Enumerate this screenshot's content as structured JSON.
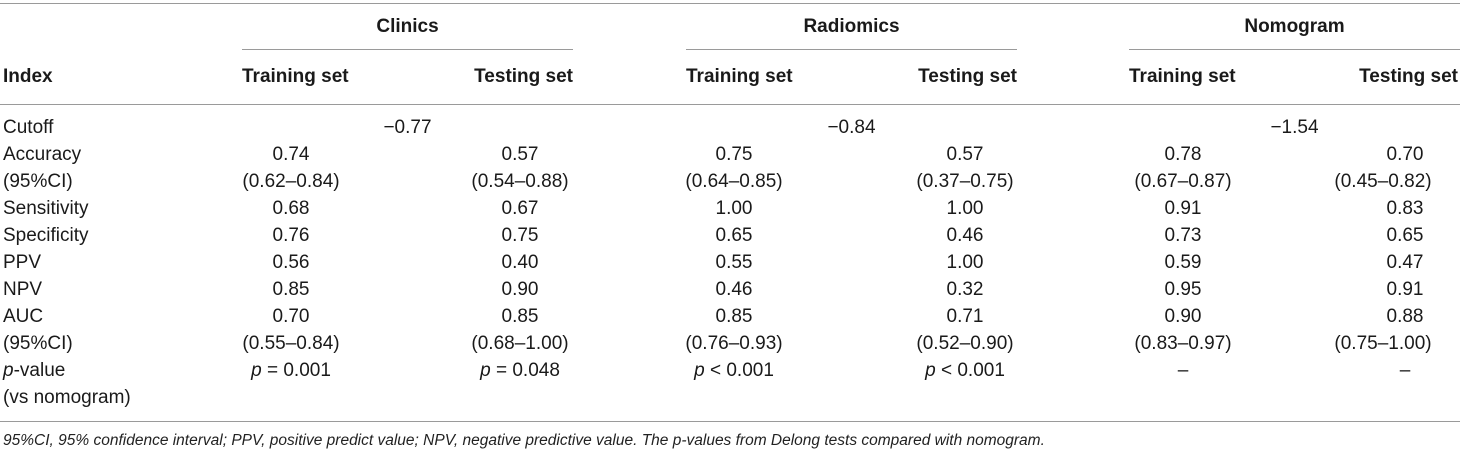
{
  "groups": [
    "Clinics",
    "Radiomics",
    "Nomogram"
  ],
  "index_header": "Index",
  "subheaders": [
    "Training set",
    "Testing set",
    "Training set",
    "Testing set",
    "Training set",
    "Testing set"
  ],
  "cutoffs": [
    "−0.77",
    "−0.84",
    "−1.54"
  ],
  "rows": [
    {
      "label": "Cutoff"
    },
    {
      "label": "Accuracy",
      "values": [
        "0.74",
        "0.57",
        "0.75",
        "0.57",
        "0.78",
        "0.70"
      ]
    },
    {
      "label": "(95%CI)",
      "values": [
        "(0.62–0.84)",
        "(0.54–0.88)",
        "(0.64–0.85)",
        "(0.37–0.75)",
        "(0.67–0.87)",
        "(0.45–0.82)"
      ]
    },
    {
      "label": "Sensitivity",
      "values": [
        "0.68",
        "0.67",
        "1.00",
        "1.00",
        "0.91",
        "0.83"
      ]
    },
    {
      "label": "Specificity",
      "values": [
        "0.76",
        "0.75",
        "0.65",
        "0.46",
        "0.73",
        "0.65"
      ]
    },
    {
      "label": "PPV",
      "values": [
        "0.56",
        "0.40",
        "0.55",
        "1.00",
        "0.59",
        "0.47"
      ]
    },
    {
      "label": "NPV",
      "values": [
        "0.85",
        "0.90",
        "0.46",
        "0.32",
        "0.95",
        "0.91"
      ]
    },
    {
      "label": "AUC",
      "values": [
        "0.70",
        "0.85",
        "0.85",
        "0.71",
        "0.90",
        "0.88"
      ]
    },
    {
      "label": "(95%CI)",
      "values": [
        "(0.55–0.84)",
        "(0.68–1.00)",
        "(0.76–0.93)",
        "(0.52–0.90)",
        "(0.83–0.97)",
        "(0.75–1.00)"
      ]
    },
    {
      "label_italic": "p",
      "label_rest": "-value",
      "values": [
        "= 0.001",
        "= 0.048",
        "< 0.001",
        "< 0.001",
        "–",
        "–"
      ]
    },
    {
      "label": "(vs nomogram)"
    }
  ],
  "p_symbol": "p",
  "footnote": "95%CI, 95% confidence interval; PPV, positive predict value; NPV, negative predictive value. The p-values from Delong tests compared with nomogram."
}
